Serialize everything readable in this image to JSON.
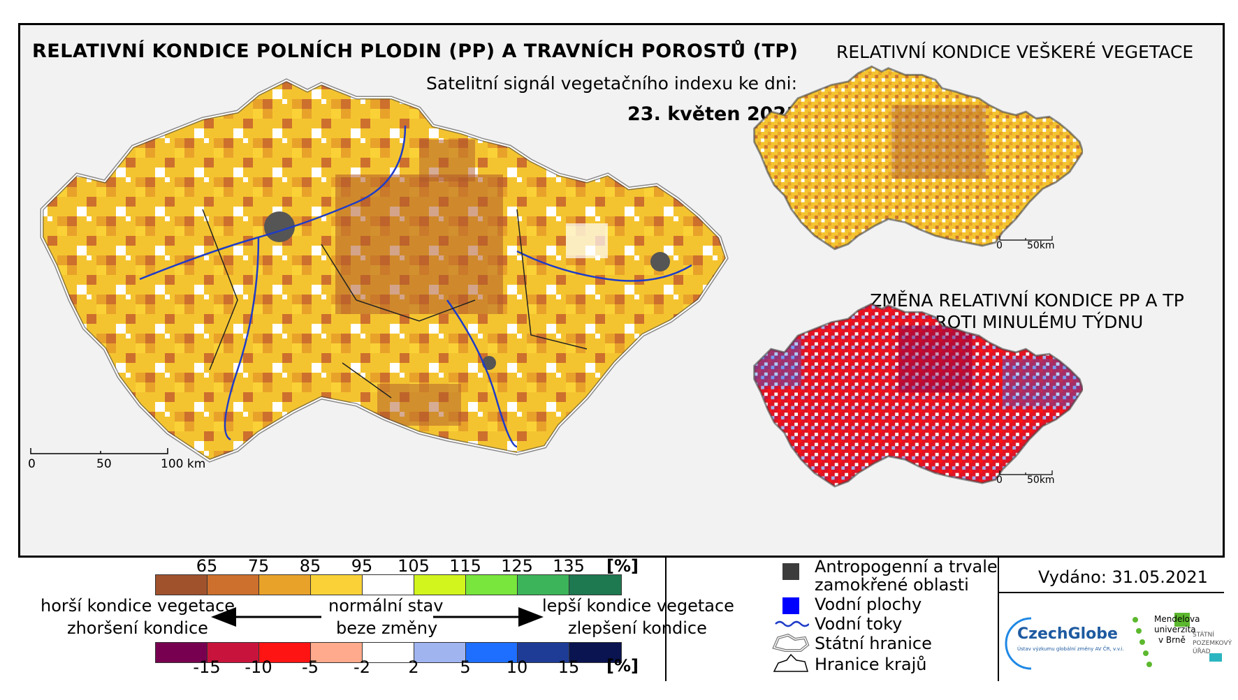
{
  "header": {
    "title": "RELATIVNÍ KONDICE POLNÍCH PLODIN (PP) A TRAVNÍCH POROSTŮ (TP)",
    "subtitle": "Satelitní signál vegetačního indexu ke dni:",
    "date": "23. květen 2021"
  },
  "inset_top": {
    "title": "RELATIVNÍ KONDICE VEŠKERÉ VEGETACE",
    "scale": {
      "zero": "0",
      "end": "50km"
    }
  },
  "inset_bottom": {
    "title_line1": "ZMĚNA RELATIVNÍ KONDICE PP A TP",
    "title_line2": "OPROTI MINULÉMU TÝDNU",
    "scale": {
      "zero": "0",
      "end": "50km"
    }
  },
  "main_scale": {
    "zero": "0",
    "mid": "50",
    "end": "100 km"
  },
  "condition_legend": {
    "ticks": [
      "65",
      "75",
      "85",
      "95",
      "105",
      "115",
      "125",
      "135"
    ],
    "unit": "[%]",
    "colors": [
      "#a0522d",
      "#cd6f2d",
      "#e8a22a",
      "#fad237",
      "#ffffff",
      "#d2f51e",
      "#78e63c",
      "#3cb45a",
      "#1e7850"
    ]
  },
  "change_legend": {
    "ticks": [
      "-15",
      "-10",
      "-5",
      "-2",
      "2",
      "5",
      "10",
      "15"
    ],
    "unit": "[%]",
    "colors": [
      "#780050",
      "#c8143c",
      "#ff1414",
      "#ffaa8c",
      "#ffffff",
      "#a0b4f0",
      "#1e6eff",
      "#1e3c96",
      "#0a1450"
    ]
  },
  "arrow_text": {
    "worse_1": "horší kondice vegetace",
    "worse_2": "zhoršení kondice",
    "normal_1": "normální stav",
    "normal_2": "beze změny",
    "better_1": "lepší kondice vegetace",
    "better_2": "zlepšení kondice"
  },
  "symbols": {
    "anthropogenic_1": "Antropogenní a trvale",
    "anthropogenic_2": "zamokřené oblasti",
    "water_bodies": "Vodní plochy",
    "rivers": "Vodní toky",
    "state_border": "Státní hranice",
    "region_border": "Hranice krajů"
  },
  "issued": "Vydáno: 31.05.2021",
  "logos": {
    "czechglobe": "CzechGlobe",
    "czechglobe_sub": "Ústav výzkumu globální změny AV ČR, v.v.i.",
    "mendel_1": "Mendelova",
    "mendel_2": "univerzita",
    "mendel_3": "v Brně",
    "spu_1": "STÁTNÍ",
    "spu_2": "POZEMKOVÝ",
    "spu_3": "ÚŘAD"
  }
}
